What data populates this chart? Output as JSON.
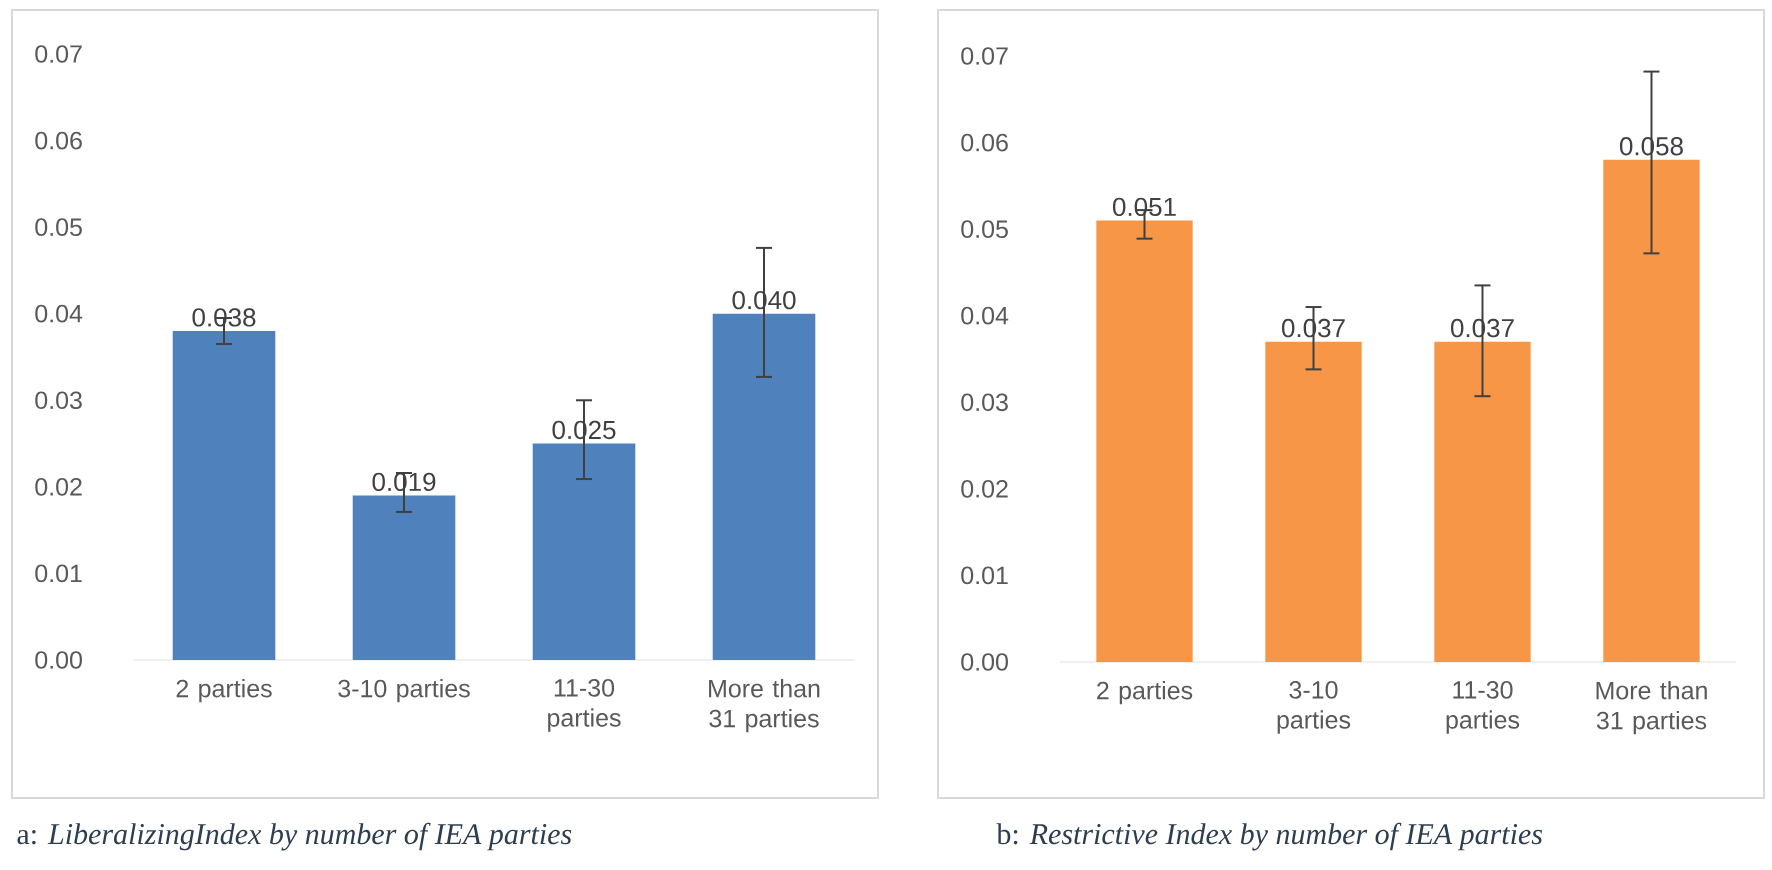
{
  "chart_data": [
    {
      "type": "bar",
      "categories": [
        "2 parties",
        "3-10 parties",
        "11-30 parties",
        "More than 31 parties"
      ],
      "values": [
        0.038,
        0.019,
        0.025,
        0.04
      ],
      "color": "#4f81bd",
      "errors": [
        [
          0.0365,
          0.0395
        ],
        [
          0.0171,
          0.0216
        ],
        [
          0.0209,
          0.03
        ],
        [
          0.0327,
          0.0476
        ]
      ],
      "value_labels": [
        "0.038",
        "0.019",
        "0.025",
        "0.040"
      ],
      "ylim": [
        0,
        0.07
      ],
      "yticks": [
        {
          "value": 0,
          "label": "0.00"
        },
        0.01,
        0.02,
        0.03,
        0.04,
        0.05,
        0.06,
        0.07
      ],
      "grid": false,
      "annotations": [
        "a: *LiberalizingIndex by number of IEA parties*"
      ]
    },
    {
      "type": "bar",
      "categories": [
        "2 parties",
        "3-10 parties",
        "11-30 parties",
        "More than 31 parties"
      ],
      "values": [
        0.051,
        0.037,
        0.037,
        0.058
      ],
      "color": "#f79646",
      "errors": [
        [
          0.0489,
          0.0522
        ],
        [
          0.0338,
          0.041
        ],
        [
          0.0307,
          0.0435
        ],
        [
          0.0472,
          0.0682
        ]
      ],
      "value_labels": [
        "0.051",
        "0.037",
        "0.037",
        "0.058"
      ],
      "ylim": [
        0,
        0.07
      ],
      "yticks": [
        {
          "value": 0,
          "label": "0.00"
        },
        0.01,
        0.02,
        0.03,
        0.04,
        0.05,
        0.06,
        0.07
      ],
      "grid": false,
      "annotations": [
        "b: *Restrictive Index by number of IEA parties*"
      ]
    }
  ]
}
